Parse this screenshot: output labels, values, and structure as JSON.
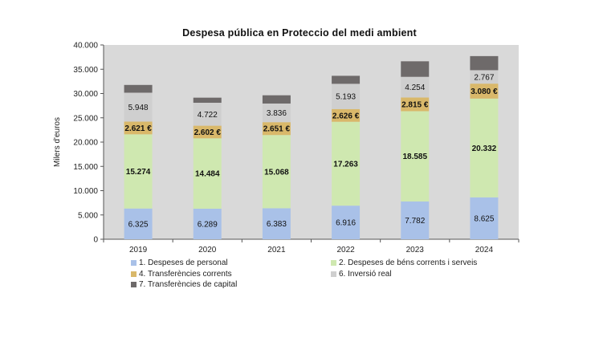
{
  "chart_data": {
    "type": "bar",
    "stacked": true,
    "title": "Despesa pública en Proteccio del medi ambient",
    "ylabel": "Milers d'euros",
    "xlabel": "",
    "ylim": [
      0,
      40000
    ],
    "yticks": [
      "0",
      "5.000",
      "10.000",
      "15.000",
      "20.000",
      "25.000",
      "30.000",
      "35.000",
      "40.000"
    ],
    "yticks_values": [
      0,
      5000,
      10000,
      15000,
      20000,
      25000,
      30000,
      35000,
      40000
    ],
    "categories": [
      "2019",
      "2020",
      "2021",
      "2022",
      "2023",
      "2024"
    ],
    "grid": false,
    "background": "#d9d9d9",
    "legend_position": "bottom",
    "series": [
      {
        "name": "1. Despeses de personal",
        "color": "#a9c1e8",
        "values": [
          6325,
          6289,
          6383,
          6916,
          7782,
          8625
        ],
        "labels": [
          "6.325",
          "6.289",
          "6.383",
          "6.916",
          "7.782",
          "8.625"
        ],
        "label_bold": false
      },
      {
        "name": "2. Despeses de béns corrents i serveis",
        "color": "#cfe8b0",
        "values": [
          15274,
          14484,
          15068,
          17263,
          18585,
          20332
        ],
        "labels": [
          "15.274",
          "14.484",
          "15.068",
          "17.263",
          "18.585",
          "20.332"
        ],
        "label_bold": true
      },
      {
        "name": "4. Transferències corrents",
        "color": "#d9b86a",
        "values": [
          2621,
          2602,
          2651,
          2626,
          2815,
          3080
        ],
        "labels": [
          "2.621 €",
          "2.602 €",
          "2.651 €",
          "2.626 €",
          "2.815 €",
          "3.080 €"
        ],
        "label_bold": true
      },
      {
        "name": "6. Inversió real",
        "color": "#cfcfcf",
        "values": [
          5948,
          4722,
          3836,
          5193,
          4254,
          2767
        ],
        "labels": [
          "5.948",
          "4.722",
          "3.836",
          "5.193",
          "4.254",
          "2.767"
        ],
        "label_bold": false
      },
      {
        "name": "7. Transferències de capital",
        "color": "#6e6a6a",
        "values": [
          1600,
          1050,
          1700,
          1650,
          3200,
          2900
        ],
        "labels": [],
        "label_bold": false
      }
    ]
  }
}
